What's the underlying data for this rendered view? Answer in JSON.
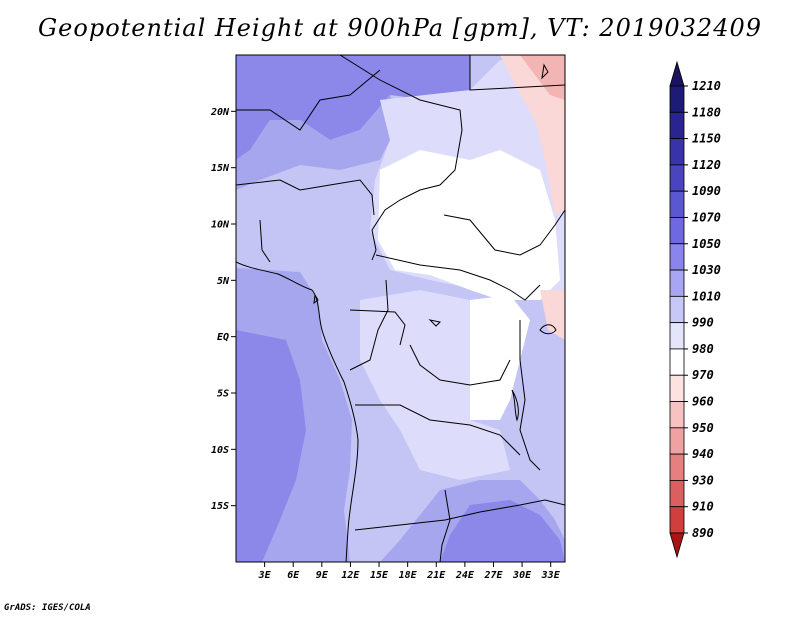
{
  "title": "Geopotential Height at 900hPa [gpm], VT: 2019032409",
  "footer": "GrADS: IGES/COLA",
  "map": {
    "lon_range": [
      0,
      34.5
    ],
    "lat_range": [
      -20,
      25
    ],
    "lat_ticks": [
      {
        "value": 20,
        "label": "20N"
      },
      {
        "value": 15,
        "label": "15N"
      },
      {
        "value": 10,
        "label": "10N"
      },
      {
        "value": 5,
        "label": "5N"
      },
      {
        "value": 0,
        "label": "EQ"
      },
      {
        "value": -5,
        "label": "5S"
      },
      {
        "value": -10,
        "label": "10S"
      },
      {
        "value": -15,
        "label": "15S"
      }
    ],
    "lon_ticks": [
      {
        "value": 3,
        "label": "3E"
      },
      {
        "value": 6,
        "label": "6E"
      },
      {
        "value": 9,
        "label": "9E"
      },
      {
        "value": 12,
        "label": "12E"
      },
      {
        "value": 15,
        "label": "15E"
      },
      {
        "value": 18,
        "label": "18E"
      },
      {
        "value": 21,
        "label": "21E"
      },
      {
        "value": 24,
        "label": "24E"
      },
      {
        "value": 27,
        "label": "27E"
      },
      {
        "value": 30,
        "label": "30E"
      },
      {
        "value": 33,
        "label": "33E"
      }
    ]
  },
  "colorbar": {
    "levels": [
      {
        "label": "1210",
        "color": "#1e1a78"
      },
      {
        "label": "1180",
        "color": "#2a2490"
      },
      {
        "label": "1150",
        "color": "#3a32a8"
      },
      {
        "label": "1120",
        "color": "#4a44bf"
      },
      {
        "label": "1090",
        "color": "#5a58d0"
      },
      {
        "label": "1070",
        "color": "#7068e0"
      },
      {
        "label": "1050",
        "color": "#8a84ec"
      },
      {
        "label": "1030",
        "color": "#a8a6f2"
      },
      {
        "label": "1010",
        "color": "#c8c8f7"
      },
      {
        "label": "990",
        "color": "#e4e4fb"
      },
      {
        "label": "980",
        "color": "#ffffff"
      },
      {
        "label": "970",
        "color": "#fde2e2"
      },
      {
        "label": "960",
        "color": "#f8c2c2"
      },
      {
        "label": "950",
        "color": "#f0a2a2"
      },
      {
        "label": "940",
        "color": "#e68080"
      },
      {
        "label": "930",
        "color": "#dc5f5f"
      },
      {
        "label": "910",
        "color": "#d03e3e"
      },
      {
        "label": "890",
        "color": "#c22222"
      }
    ],
    "top_arrow_color": "#1a1460",
    "bottom_arrow_color": "#a81414"
  },
  "fields": {
    "color_light": "#ddddfb",
    "color_medium": "#c4c4f5",
    "color_strong": "#a6a6ef",
    "color_deep": "#8c88e9",
    "color_white": "#ffffff",
    "color_pink": "#fbd8d8",
    "color_pink_strong": "#f3b4b4"
  }
}
